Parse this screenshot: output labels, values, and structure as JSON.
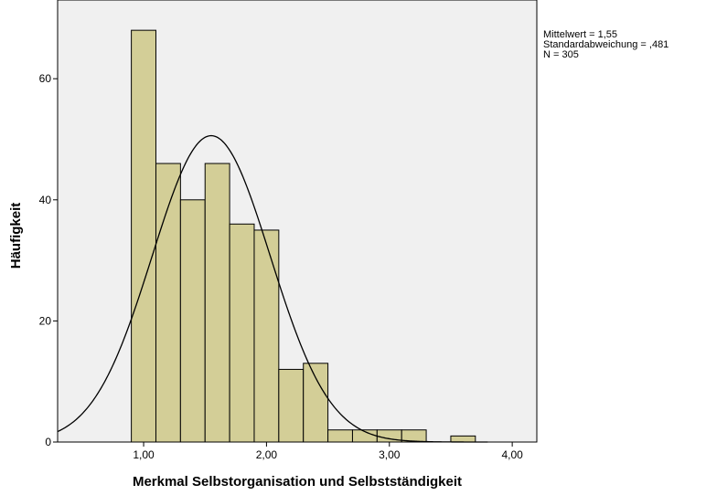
{
  "chart_data": {
    "type": "bar",
    "title": "Merkmal Selbstorganisation und Selbstständigkeit",
    "xlabel": "Merkmal Selbstorganisation und Selbstständigkeit",
    "ylabel": "Häufigkeit",
    "bin_width": 0.2,
    "bins": [
      {
        "x0": 0.9,
        "x1": 1.1,
        "count": 68
      },
      {
        "x0": 1.1,
        "x1": 1.3,
        "count": 46
      },
      {
        "x0": 1.3,
        "x1": 1.5,
        "count": 40
      },
      {
        "x0": 1.5,
        "x1": 1.7,
        "count": 46
      },
      {
        "x0": 1.7,
        "x1": 1.9,
        "count": 36
      },
      {
        "x0": 1.9,
        "x1": 2.1,
        "count": 35
      },
      {
        "x0": 2.1,
        "x1": 2.3,
        "count": 12
      },
      {
        "x0": 2.3,
        "x1": 2.5,
        "count": 13
      },
      {
        "x0": 2.5,
        "x1": 2.7,
        "count": 2
      },
      {
        "x0": 2.7,
        "x1": 2.9,
        "count": 2
      },
      {
        "x0": 2.9,
        "x1": 3.1,
        "count": 2
      },
      {
        "x0": 3.1,
        "x1": 3.3,
        "count": 2
      },
      {
        "x0": 3.5,
        "x1": 3.7,
        "count": 1
      }
    ],
    "x_ticks": [
      {
        "value": 1.0,
        "label": "1,00"
      },
      {
        "value": 2.0,
        "label": "2,00"
      },
      {
        "value": 3.0,
        "label": "3,00"
      },
      {
        "value": 4.0,
        "label": "4,00"
      }
    ],
    "y_ticks": [
      {
        "value": 0,
        "label": "0"
      },
      {
        "value": 20,
        "label": "20"
      },
      {
        "value": 40,
        "label": "40"
      },
      {
        "value": 60,
        "label": "60"
      }
    ],
    "xlim": [
      0.3,
      4.2
    ],
    "ylim": [
      0,
      73
    ],
    "normal_curve": {
      "mean": 1.55,
      "sd": 0.481,
      "n": 305
    },
    "legend": {
      "mean": "Mittelwert = 1,55",
      "sd": "Standardabweichung = ,481",
      "n": "N = 305"
    },
    "grid": false,
    "legend_position": "top-right",
    "colors": {
      "plot_background": "#f0f0f0",
      "bar_fill": "#d3ce97",
      "bar_stroke": "#000000",
      "curve": "#000000"
    }
  }
}
